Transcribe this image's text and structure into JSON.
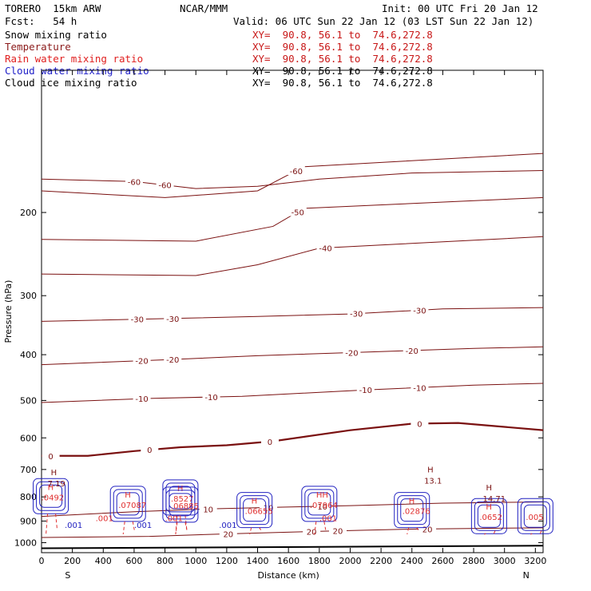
{
  "header": {
    "model": "TORERO  15km ARW",
    "org": "NCAR/MMM",
    "init": "Init: 00 UTC Fri 20 Jan 12",
    "fcst": "Fcst:   54 h",
    "valid": "Valid: 06 UTC Sun 22 Jan 12 (03 LST Sun 22 Jan 12)"
  },
  "fields": [
    {
      "name": "Snow mixing ratio",
      "xy": "XY=  90.8, 56.1 to  74.6,272.8",
      "color": "#000000"
    },
    {
      "name": "Temperature",
      "xy": "XY=  90.8, 56.1 to  74.6,272.8",
      "color": "#8b1a1a"
    },
    {
      "name": "Rain water mixing ratio",
      "xy": "XY=  90.8, 56.1 to  74.6,272.8",
      "color": "#e02020"
    },
    {
      "name": "Cloud water mixing ratio",
      "xy": "XY=  90.8, 56.1 to  74.6,272.8",
      "color": "#2020c8"
    },
    {
      "name": "Cloud ice mixing ratio",
      "xy": "XY=  90.8, 56.1 to  74.6,272.8",
      "color": "#000000"
    }
  ],
  "colors": {
    "temperature": "#7a1010",
    "rain": "#e03030",
    "cloud": "#2020c0",
    "ground": "#000000"
  },
  "chart_data": {
    "type": "contour",
    "xlabel": "Distance (km)",
    "ylabel": "Pressure (hPa)",
    "xlim": [
      0,
      3250
    ],
    "ylim": [
      1050,
      100
    ],
    "x_ticks": [
      0,
      200,
      400,
      600,
      800,
      1000,
      1200,
      1400,
      1600,
      1800,
      2000,
      2200,
      2400,
      2600,
      2800,
      3000,
      3200
    ],
    "y_ticks": [
      200,
      300,
      400,
      500,
      600,
      700,
      800,
      900,
      1000
    ],
    "end_labels": {
      "left": "S",
      "right": "N"
    },
    "temperature_contours": [
      {
        "label": "-60",
        "points": [
          [
            0,
            170
          ],
          [
            600,
            172
          ],
          [
            1000,
            178
          ],
          [
            1400,
            176
          ],
          [
            1800,
            170
          ],
          [
            2400,
            165
          ],
          [
            3250,
            163
          ]
        ],
        "labels_at": [
          600,
          800
        ]
      },
      {
        "label": "-60",
        "points": [
          [
            0,
            180
          ],
          [
            800,
            186
          ],
          [
            1400,
            180
          ],
          [
            1700,
            160
          ],
          [
            3250,
            150
          ]
        ],
        "labels_at": [
          1650
        ]
      },
      {
        "label": "-50",
        "points": [
          [
            0,
            228
          ],
          [
            1000,
            230
          ],
          [
            1500,
            214
          ],
          [
            1700,
            196
          ],
          [
            3250,
            186
          ]
        ],
        "labels_at": [
          1660
        ]
      },
      {
        "label": "-40",
        "points": [
          [
            0,
            270
          ],
          [
            1000,
            272
          ],
          [
            1400,
            258
          ],
          [
            1800,
            238
          ],
          [
            3250,
            225
          ]
        ],
        "labels_at": [
          1840
        ]
      },
      {
        "label": "-30",
        "points": [
          [
            0,
            340
          ],
          [
            900,
            335
          ],
          [
            1400,
            332
          ],
          [
            2000,
            328
          ],
          [
            2600,
            320
          ],
          [
            3250,
            318
          ]
        ],
        "labels_at": [
          620,
          850,
          2040,
          2450
        ]
      },
      {
        "label": "-20",
        "points": [
          [
            0,
            420
          ],
          [
            800,
            410
          ],
          [
            1400,
            402
          ],
          [
            2100,
            395
          ],
          [
            2800,
            388
          ],
          [
            3250,
            385
          ]
        ],
        "labels_at": [
          650,
          850,
          2010,
          2400
        ]
      },
      {
        "label": "-10",
        "points": [
          [
            0,
            505
          ],
          [
            700,
            495
          ],
          [
            1300,
            490
          ],
          [
            2100,
            475
          ],
          [
            2800,
            464
          ],
          [
            3250,
            460
          ]
        ],
        "labels_at": [
          650,
          1100,
          2100,
          2450
        ]
      },
      {
        "label": "0",
        "points": [
          [
            0,
            655
          ],
          [
            300,
            655
          ],
          [
            600,
            640
          ],
          [
            900,
            628
          ],
          [
            1200,
            622
          ],
          [
            1500,
            610
          ],
          [
            2000,
            578
          ],
          [
            2400,
            560
          ],
          [
            2700,
            558
          ],
          [
            3250,
            578
          ]
        ],
        "labels_at": [
          60,
          700,
          1480,
          2450
        ]
      },
      {
        "label": "10",
        "points": [
          [
            0,
            880
          ],
          [
            600,
            860
          ],
          [
            1100,
            848
          ],
          [
            1500,
            842
          ],
          [
            2000,
            835
          ],
          [
            2600,
            825
          ],
          [
            3250,
            820
          ]
        ],
        "labels_at": [
          1080,
          1470,
          1820
        ]
      },
      {
        "label": "20",
        "points": [
          [
            0,
            975
          ],
          [
            700,
            970
          ],
          [
            1200,
            958
          ],
          [
            1800,
            946
          ],
          [
            2400,
            936
          ],
          [
            3250,
            930
          ]
        ],
        "labels_at": [
          1210,
          1750,
          1920,
          2500
        ]
      }
    ],
    "rain_max_labels": [
      {
        "x": 60,
        "p": 785,
        "label": "H",
        "value": ".0492"
      },
      {
        "x": 560,
        "p": 815,
        "label": "H",
        "value": ".07087"
      },
      {
        "x": 900,
        "p": 790,
        "label": "H",
        "value": ".8527"
      },
      {
        "x": 900,
        "p": 818,
        "label": "",
        "value": ".06885"
      },
      {
        "x": 1380,
        "p": 840,
        "label": "H",
        "value": ".06655"
      },
      {
        "x": 1800,
        "p": 815,
        "label": "HH",
        "value": ".07964"
      },
      {
        "x": 2400,
        "p": 840,
        "label": "H",
        "value": ".02876"
      },
      {
        "x": 2900,
        "p": 865,
        "label": "H",
        "value": ".0652"
      },
      {
        "x": 3200,
        "p": 865,
        "label": "",
        "value": ".005"
      }
    ],
    "snow_max_labels": [
      {
        "x": 60,
        "p": 720,
        "label": "H",
        "value": "7.19"
      },
      {
        "x": 2500,
        "p": 710,
        "label": "H",
        "value": "13.1"
      },
      {
        "x": 2880,
        "p": 775,
        "label": "H",
        "value": "14.71"
      }
    ],
    "cloud_labels": [
      ".001",
      ".001",
      ".001",
      ".001",
      ".001",
      ".001"
    ]
  }
}
